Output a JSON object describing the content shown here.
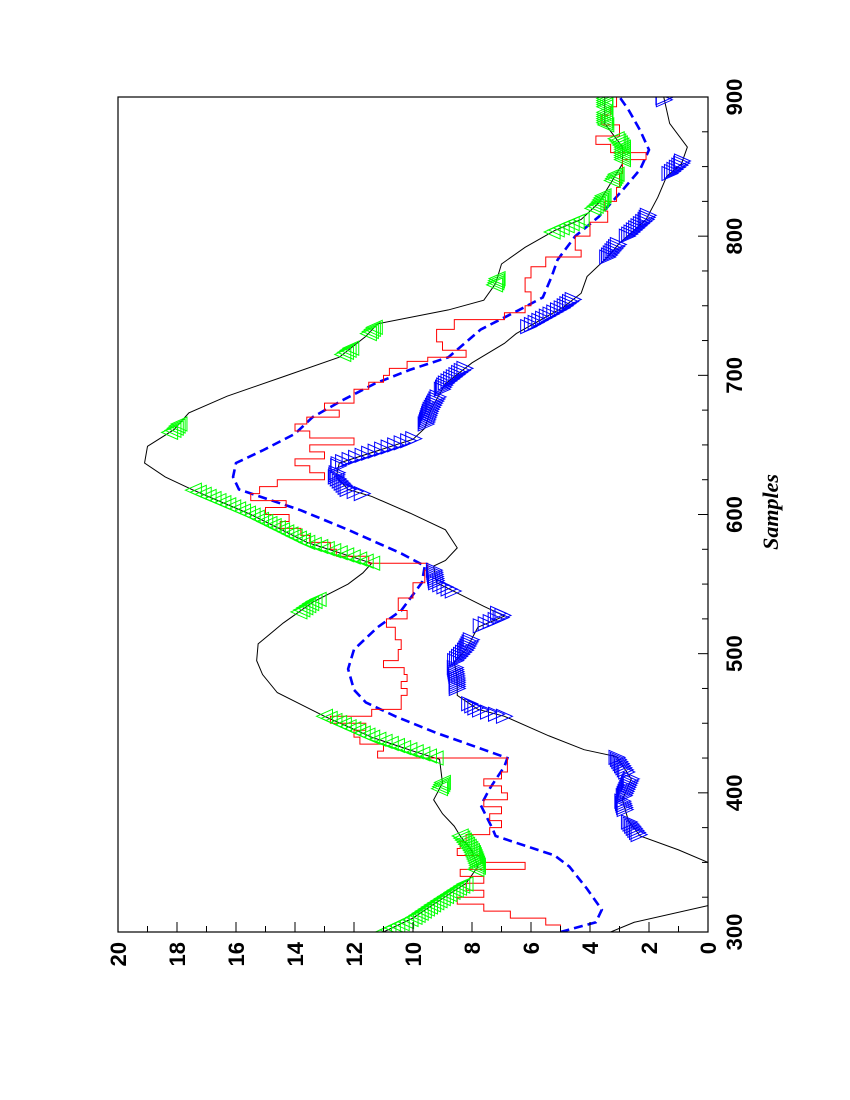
{
  "chart_data": {
    "type": "line",
    "orientation": "rotated-90",
    "title": "",
    "xlabel": "Samples",
    "ylabel": "",
    "xlim": [
      300,
      900
    ],
    "ylim": [
      0,
      20
    ],
    "x_ticks": [
      "300",
      "400",
      "500",
      "600",
      "700",
      "800",
      "900"
    ],
    "y_ticks": [
      "0",
      "2",
      "4",
      "6",
      "8",
      "10",
      "12",
      "14",
      "16",
      "18",
      "20"
    ],
    "grid": false,
    "colors": {
      "upper": "#000000",
      "lower": "#000000",
      "mean": "#0000ff",
      "measured": "#ff0000",
      "upper_marker": "#00ff00",
      "lower_marker": "#0000ff"
    },
    "series": [
      {
        "name": "upper",
        "style": "solid",
        "points": [
          [
            300,
            11.0
          ],
          [
            310,
            10.0
          ],
          [
            320,
            9.3
          ],
          [
            335,
            8.2
          ],
          [
            347,
            7.8
          ],
          [
            358,
            8.0
          ],
          [
            369,
            8.4
          ],
          [
            376,
            8.6
          ],
          [
            385,
            9.0
          ],
          [
            395,
            9.3
          ],
          [
            407,
            9.0
          ],
          [
            424,
            9.1
          ],
          [
            430,
            10.0
          ],
          [
            440,
            11.4
          ],
          [
            455,
            13.0
          ],
          [
            472,
            14.6
          ],
          [
            485,
            15.1
          ],
          [
            495,
            15.3
          ],
          [
            507,
            15.25
          ],
          [
            522,
            14.4
          ],
          [
            537,
            13.4
          ],
          [
            550,
            12.2
          ],
          [
            558,
            11.7
          ],
          [
            565,
            11.4
          ],
          [
            580,
            13.6
          ],
          [
            600,
            15.5
          ],
          [
            618,
            17.5
          ],
          [
            627,
            18.4
          ],
          [
            637,
            19.1
          ],
          [
            649,
            19.0
          ],
          [
            661,
            18.1
          ],
          [
            673,
            17.6
          ],
          [
            685,
            16.3
          ],
          [
            699,
            14.4
          ],
          [
            713,
            12.5
          ],
          [
            728,
            11.6
          ],
          [
            737,
            11.2
          ],
          [
            747,
            8.8
          ],
          [
            754,
            7.6
          ],
          [
            766,
            7.2
          ],
          [
            780,
            7.0
          ],
          [
            792,
            6.2
          ],
          [
            804,
            5.2
          ],
          [
            812,
            4.3
          ],
          [
            824,
            3.7
          ],
          [
            838,
            3.3
          ],
          [
            852,
            2.9
          ],
          [
            864,
            2.9
          ],
          [
            881,
            3.5
          ],
          [
            900,
            3.5
          ]
        ]
      },
      {
        "name": "lower",
        "style": "solid",
        "points": [
          [
            300,
            3.3
          ],
          [
            307,
            2.5
          ],
          [
            319,
            0
          ],
          [
            350,
            0
          ],
          [
            359,
            1.0
          ],
          [
            369,
            2.3
          ],
          [
            380,
            2.7
          ],
          [
            395,
            2.9
          ],
          [
            410,
            2.6
          ],
          [
            426,
            3.1
          ],
          [
            431,
            4.2
          ],
          [
            441,
            5.4
          ],
          [
            455,
            6.9
          ],
          [
            460,
            7.8
          ],
          [
            470,
            8.5
          ],
          [
            482,
            8.5
          ],
          [
            494,
            8.6
          ],
          [
            503,
            8.2
          ],
          [
            519,
            7.8
          ],
          [
            527,
            6.9
          ],
          [
            534,
            7.6
          ],
          [
            551,
            9.2
          ],
          [
            563,
            9.3
          ],
          [
            567,
            8.9
          ],
          [
            576,
            8.5
          ],
          [
            589,
            8.9
          ],
          [
            601,
            10.1
          ],
          [
            613,
            11.4
          ],
          [
            618,
            12.2
          ],
          [
            627,
            12.6
          ],
          [
            637,
            12.5
          ],
          [
            654,
            10.0
          ],
          [
            662,
            9.6
          ],
          [
            675,
            9.4
          ],
          [
            694,
            8.9
          ],
          [
            709,
            8.0
          ],
          [
            723,
            6.9
          ],
          [
            730,
            6.5
          ],
          [
            749,
            4.9
          ],
          [
            759,
            4.3
          ],
          [
            771,
            4.1
          ],
          [
            785,
            3.4
          ],
          [
            795,
            3.0
          ],
          [
            812,
            2.1
          ],
          [
            828,
            1.7
          ],
          [
            843,
            1.4
          ],
          [
            852,
            0.9
          ],
          [
            864,
            0.7
          ],
          [
            881,
            1.3
          ],
          [
            900,
            1.5
          ]
        ]
      },
      {
        "name": "mean",
        "style": "dashed",
        "points": [
          [
            300,
            5.0
          ],
          [
            307,
            3.8
          ],
          [
            316,
            3.6
          ],
          [
            331,
            4.1
          ],
          [
            347,
            4.7
          ],
          [
            355,
            5.2
          ],
          [
            369,
            7.2
          ],
          [
            374,
            7.3
          ],
          [
            391,
            7.7
          ],
          [
            403,
            7.4
          ],
          [
            419,
            6.9
          ],
          [
            425,
            6.8
          ],
          [
            431,
            7.6
          ],
          [
            443,
            9.2
          ],
          [
            455,
            10.6
          ],
          [
            465,
            11.6
          ],
          [
            474,
            12.0
          ],
          [
            489,
            12.2
          ],
          [
            503,
            12.0
          ],
          [
            519,
            11.2
          ],
          [
            531,
            10.4
          ],
          [
            551,
            9.7
          ],
          [
            563,
            9.6
          ],
          [
            572,
            10.4
          ],
          [
            589,
            12.2
          ],
          [
            603,
            13.8
          ],
          [
            618,
            15.9
          ],
          [
            627,
            16.1
          ],
          [
            637,
            16.0
          ],
          [
            646,
            15.1
          ],
          [
            658,
            14.0
          ],
          [
            670,
            13.4
          ],
          [
            682,
            12.4
          ],
          [
            694,
            11.3
          ],
          [
            704,
            10.1
          ],
          [
            713,
            8.8
          ],
          [
            733,
            7.7
          ],
          [
            747,
            6.4
          ],
          [
            756,
            5.6
          ],
          [
            771,
            5.3
          ],
          [
            783,
            5.1
          ],
          [
            800,
            4.5
          ],
          [
            814,
            3.7
          ],
          [
            833,
            2.9
          ],
          [
            848,
            2.3
          ],
          [
            862,
            2.0
          ],
          [
            876,
            2.3
          ],
          [
            891,
            2.7
          ],
          [
            900,
            3.0
          ]
        ]
      },
      {
        "name": "measured",
        "style": "step",
        "points": [
          [
            300,
            5.0
          ],
          [
            305,
            5.5
          ],
          [
            310,
            6.7
          ],
          [
            315,
            7.6
          ],
          [
            320,
            8.5
          ],
          [
            325,
            7.6
          ],
          [
            330,
            8.2
          ],
          [
            335,
            7.6
          ],
          [
            340,
            8.4
          ],
          [
            345,
            6.2
          ],
          [
            350,
            7.7
          ],
          [
            355,
            8.5
          ],
          [
            360,
            8.4
          ],
          [
            365,
            8.2
          ],
          [
            370,
            7.4
          ],
          [
            375,
            7.0
          ],
          [
            380,
            7.4
          ],
          [
            385,
            7.0
          ],
          [
            390,
            7.6
          ],
          [
            395,
            6.8
          ],
          [
            400,
            7.0
          ],
          [
            405,
            7.6
          ],
          [
            410,
            7.0
          ],
          [
            415,
            6.8
          ],
          [
            420,
            6.8
          ],
          [
            425,
            11.2
          ],
          [
            430,
            11.0
          ],
          [
            435,
            11.8
          ],
          [
            440,
            12.0
          ],
          [
            445,
            11.6
          ],
          [
            450,
            12.8
          ],
          [
            455,
            11.4
          ],
          [
            460,
            10.4
          ],
          [
            465,
            10.4
          ],
          [
            470,
            10.2
          ],
          [
            475,
            10.4
          ],
          [
            480,
            10.2
          ],
          [
            485,
            10.3
          ],
          [
            490,
            11.0
          ],
          [
            495,
            10.5
          ],
          [
            503,
            10.4
          ],
          [
            510,
            10.6
          ],
          [
            519,
            10.9
          ],
          [
            525,
            10.2
          ],
          [
            531,
            10.5
          ],
          [
            540,
            10.0
          ],
          [
            551,
            9.6
          ],
          [
            560,
            9.5
          ],
          [
            565,
            11.5
          ],
          [
            570,
            12.6
          ],
          [
            575,
            12.8
          ],
          [
            580,
            13.5
          ],
          [
            585,
            13.8
          ],
          [
            590,
            14.5
          ],
          [
            595,
            14.2
          ],
          [
            600,
            15.0
          ],
          [
            605,
            14.3
          ],
          [
            610,
            15.5
          ],
          [
            615,
            15.2
          ],
          [
            620,
            14.6
          ],
          [
            625,
            13.0
          ],
          [
            630,
            13.5
          ],
          [
            635,
            14.0
          ],
          [
            640,
            13.0
          ],
          [
            645,
            13.5
          ],
          [
            650,
            12.0
          ],
          [
            655,
            13.5
          ],
          [
            660,
            14.0
          ],
          [
            665,
            13.6
          ],
          [
            670,
            12.5
          ],
          [
            675,
            13.0
          ],
          [
            680,
            12.0
          ],
          [
            685,
            12.0
          ],
          [
            690,
            11.5
          ],
          [
            695,
            11.0
          ],
          [
            700,
            10.8
          ],
          [
            705,
            10.2
          ],
          [
            710,
            9.5
          ],
          [
            713,
            8.2
          ],
          [
            718,
            9.0
          ],
          [
            724,
            9.2
          ],
          [
            733,
            8.6
          ],
          [
            740,
            6.9
          ],
          [
            745,
            6.2
          ],
          [
            750,
            6.0
          ],
          [
            760,
            6.2
          ],
          [
            770,
            6.0
          ],
          [
            778,
            5.5
          ],
          [
            785,
            4.3
          ],
          [
            790,
            4.5
          ],
          [
            800,
            4.0
          ],
          [
            810,
            3.4
          ],
          [
            818,
            3.5
          ],
          [
            825,
            3.1
          ],
          [
            835,
            3.0
          ],
          [
            845,
            2.9
          ],
          [
            855,
            2.1
          ],
          [
            860,
            3.3
          ],
          [
            866,
            3.8
          ],
          [
            872,
            3.0
          ],
          [
            880,
            3.6
          ],
          [
            887,
            3.3
          ],
          [
            893,
            3.1
          ],
          [
            900,
            3.4
          ]
        ]
      }
    ],
    "upper_marker_ranges": [
      [
        300,
        335
      ],
      [
        345,
        370
      ],
      [
        403,
        408
      ],
      [
        425,
        455
      ],
      [
        530,
        540
      ],
      [
        565,
        618
      ],
      [
        659,
        665
      ],
      [
        715,
        720
      ],
      [
        730,
        735
      ],
      [
        765,
        770
      ],
      [
        803,
        812
      ],
      [
        820,
        830
      ],
      [
        840,
        845
      ],
      [
        855,
        870
      ],
      [
        880,
        890
      ],
      [
        893,
        900
      ]
    ],
    "lower_marker_ranges": [
      [
        370,
        380
      ],
      [
        388,
        395
      ],
      [
        398,
        410
      ],
      [
        415,
        426
      ],
      [
        455,
        465
      ],
      [
        475,
        490
      ],
      [
        495,
        510
      ],
      [
        520,
        530
      ],
      [
        545,
        560
      ],
      [
        615,
        630
      ],
      [
        635,
        655
      ],
      [
        665,
        685
      ],
      [
        690,
        705
      ],
      [
        735,
        755
      ],
      [
        785,
        795
      ],
      [
        800,
        815
      ],
      [
        845,
        855
      ],
      [
        898,
        900
      ]
    ]
  }
}
